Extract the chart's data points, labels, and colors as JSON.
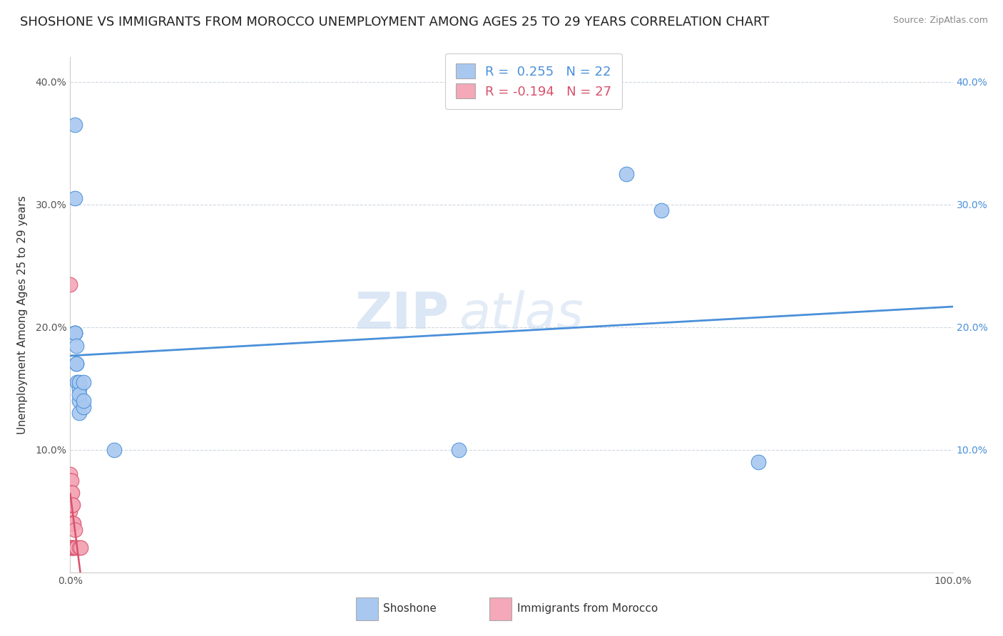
{
  "title": "SHOSHONE VS IMMIGRANTS FROM MOROCCO UNEMPLOYMENT AMONG AGES 25 TO 29 YEARS CORRELATION CHART",
  "source": "Source: ZipAtlas.com",
  "ylabel": "Unemployment Among Ages 25 to 29 years",
  "xlim": [
    0,
    1.0
  ],
  "ylim": [
    0,
    0.42
  ],
  "shoshone_color": "#a8c8f0",
  "morocco_color": "#f4a8b8",
  "shoshone_line_color": "#4a90d9",
  "morocco_line_color": "#d9506a",
  "R_shoshone": 0.255,
  "N_shoshone": 22,
  "R_morocco": -0.194,
  "N_morocco": 27,
  "shoshone_x": [
    0.005,
    0.005,
    0.005,
    0.005,
    0.005,
    0.007,
    0.007,
    0.007,
    0.008,
    0.01,
    0.01,
    0.01,
    0.01,
    0.01,
    0.015,
    0.015,
    0.015,
    0.05,
    0.44,
    0.63,
    0.67,
    0.78
  ],
  "shoshone_y": [
    0.365,
    0.305,
    0.195,
    0.195,
    0.195,
    0.17,
    0.17,
    0.185,
    0.155,
    0.15,
    0.155,
    0.14,
    0.13,
    0.145,
    0.135,
    0.14,
    0.155,
    0.1,
    0.1,
    0.325,
    0.295,
    0.09
  ],
  "morocco_x": [
    0.0,
    0.0,
    0.0,
    0.0,
    0.0,
    0.0,
    0.0,
    0.0,
    0.001,
    0.001,
    0.001,
    0.001,
    0.001,
    0.002,
    0.002,
    0.002,
    0.002,
    0.003,
    0.003,
    0.003,
    0.004,
    0.004,
    0.005,
    0.005,
    0.007,
    0.01,
    0.012
  ],
  "morocco_y": [
    0.235,
    0.08,
    0.075,
    0.065,
    0.055,
    0.05,
    0.04,
    0.02,
    0.075,
    0.065,
    0.055,
    0.04,
    0.02,
    0.065,
    0.055,
    0.04,
    0.02,
    0.055,
    0.04,
    0.02,
    0.04,
    0.02,
    0.035,
    0.02,
    0.02,
    0.02,
    0.02
  ],
  "watermark_zip": "ZIP",
  "watermark_atlas": "atlas",
  "background_color": "#ffffff",
  "grid_color": "#d0d8e0",
  "title_fontsize": 13,
  "label_fontsize": 11,
  "tick_fontsize": 10,
  "source_fontsize": 9
}
